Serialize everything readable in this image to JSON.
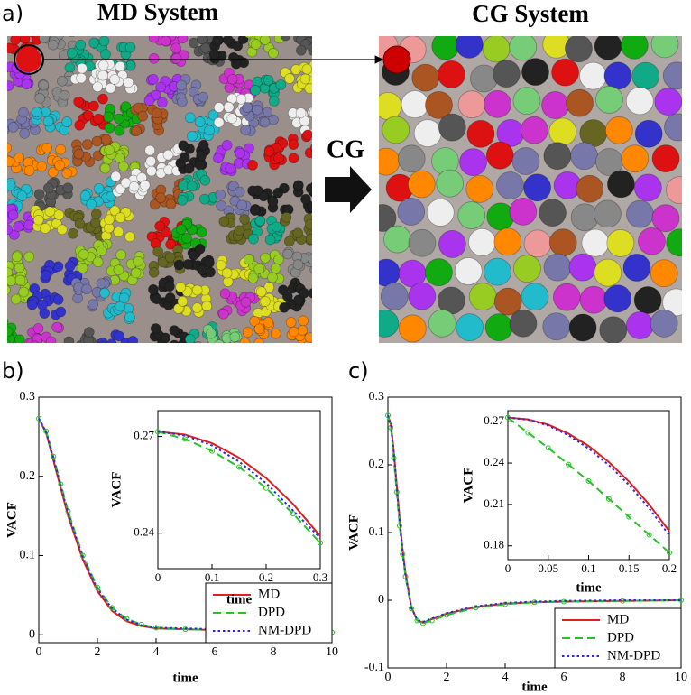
{
  "figure": {
    "panel_labels": [
      "a)",
      "b)",
      "c)"
    ],
    "md_title": "MD System",
    "cg_title": "CG System",
    "cg_arrow": "CG"
  },
  "chart_data": [
    {
      "type": "line",
      "xlabel": "time",
      "ylabel": "VACF",
      "xlim": [
        0,
        10
      ],
      "ylim": [
        -0.01,
        0.3
      ],
      "xticks": [
        0,
        2,
        4,
        6,
        8,
        10
      ],
      "yticks": [
        0,
        0.1,
        0.2,
        0.3
      ],
      "legend": "lower right",
      "x": [
        0,
        0.25,
        0.5,
        0.75,
        1,
        1.5,
        2,
        2.5,
        3,
        3.5,
        4,
        5,
        6,
        7,
        8,
        9,
        10
      ],
      "series": [
        {
          "name": "MD",
          "color": "#e0201c",
          "style": "solid",
          "values": [
            0.273,
            0.255,
            0.22,
            0.185,
            0.15,
            0.095,
            0.055,
            0.03,
            0.017,
            0.011,
            0.008,
            0.007,
            0.006,
            0.006,
            0.005,
            0.004,
            0.004
          ]
        },
        {
          "name": "DPD",
          "color": "#27c22a",
          "style": "dashed",
          "marker": "circle",
          "values": [
            0.273,
            0.257,
            0.225,
            0.19,
            0.156,
            0.1,
            0.06,
            0.034,
            0.02,
            0.013,
            0.009,
            0.007,
            0.006,
            0.005,
            0.005,
            0.004,
            0.003
          ]
        },
        {
          "name": "NM-DPD",
          "color": "#2a2ae0",
          "style": "dotted",
          "values": [
            0.273,
            0.256,
            0.223,
            0.188,
            0.153,
            0.098,
            0.058,
            0.033,
            0.019,
            0.012,
            0.009,
            0.008,
            0.007,
            0.006,
            0.006,
            0.005,
            0.005
          ]
        }
      ]
    },
    {
      "type": "line",
      "xlabel": "time",
      "ylabel": "VACF",
      "xlim": [
        0,
        0.3
      ],
      "ylim": [
        0.229,
        0.278
      ],
      "xticks": [
        0,
        0.1,
        0.2,
        0.3
      ],
      "yticks": [
        0.24,
        0.27
      ],
      "x": [
        0,
        0.05,
        0.1,
        0.15,
        0.2,
        0.25,
        0.3
      ],
      "series": [
        {
          "color": "#e0201c",
          "style": "solid",
          "values": [
            0.2715,
            0.2706,
            0.2679,
            0.2634,
            0.2571,
            0.249,
            0.2391
          ]
        },
        {
          "color": "#27c22a",
          "style": "dashed",
          "marker": "circle",
          "values": [
            0.2715,
            0.2692,
            0.2655,
            0.2605,
            0.254,
            0.246,
            0.237
          ]
        },
        {
          "color": "#2a2ae0",
          "style": "dotted",
          "values": [
            0.2715,
            0.2703,
            0.2672,
            0.2622,
            0.2555,
            0.247,
            0.2385
          ]
        }
      ]
    },
    {
      "type": "line",
      "xlabel": "time",
      "ylabel": "VACF",
      "xlim": [
        0,
        10
      ],
      "ylim": [
        -0.1,
        0.3
      ],
      "xticks": [
        0,
        2,
        4,
        6,
        8,
        10
      ],
      "yticks": [
        -0.1,
        0,
        0.1,
        0.2,
        0.3
      ],
      "legend": "lower right",
      "x": [
        0,
        0.1,
        0.2,
        0.3,
        0.4,
        0.5,
        0.6,
        0.8,
        1,
        1.2,
        1.5,
        2,
        3,
        4,
        5,
        6,
        8,
        10
      ],
      "series": [
        {
          "name": "MD",
          "color": "#e0201c",
          "style": "solid",
          "values": [
            0.273,
            0.26,
            0.22,
            0.17,
            0.12,
            0.075,
            0.04,
            -0.01,
            -0.03,
            -0.033,
            -0.028,
            -0.02,
            -0.01,
            -0.005,
            -0.003,
            -0.002,
            -0.001,
            0
          ]
        },
        {
          "name": "DPD",
          "color": "#27c22a",
          "style": "dashed",
          "marker": "circle",
          "values": [
            0.273,
            0.255,
            0.21,
            0.16,
            0.11,
            0.068,
            0.035,
            -0.012,
            -0.03,
            -0.034,
            -0.03,
            -0.022,
            -0.011,
            -0.006,
            -0.003,
            -0.002,
            -0.001,
            0
          ]
        },
        {
          "name": "NM-DPD",
          "color": "#2a2ae0",
          "style": "dotted",
          "values": [
            0.273,
            0.259,
            0.218,
            0.168,
            0.118,
            0.073,
            0.038,
            -0.011,
            -0.029,
            -0.032,
            -0.027,
            -0.019,
            -0.009,
            -0.004,
            -0.002,
            -0.001,
            0,
            0
          ]
        }
      ]
    },
    {
      "type": "line",
      "xlabel": "time",
      "ylabel": "VACF",
      "xlim": [
        0,
        0.2
      ],
      "ylim": [
        0.17,
        0.278
      ],
      "xticks": [
        0,
        0.05,
        0.1,
        0.15,
        0.2
      ],
      "yticks": [
        0.18,
        0.21,
        0.24,
        0.27
      ],
      "x": [
        0,
        0.025,
        0.05,
        0.075,
        0.1,
        0.125,
        0.15,
        0.175,
        0.2
      ],
      "series": [
        {
          "color": "#e0201c",
          "style": "solid",
          "values": [
            0.273,
            0.2717,
            0.2679,
            0.2614,
            0.2524,
            0.2408,
            0.2266,
            0.2099,
            0.1906
          ]
        },
        {
          "color": "#27c22a",
          "style": "dashed",
          "marker": "circle",
          "values": [
            0.273,
            0.262,
            0.251,
            0.239,
            0.227,
            0.214,
            0.201,
            0.188,
            0.175
          ]
        },
        {
          "color": "#2a2ae0",
          "style": "dotted",
          "values": [
            0.273,
            0.2715,
            0.2672,
            0.2602,
            0.2506,
            0.2386,
            0.2242,
            0.2072,
            0.1875
          ]
        }
      ]
    }
  ]
}
